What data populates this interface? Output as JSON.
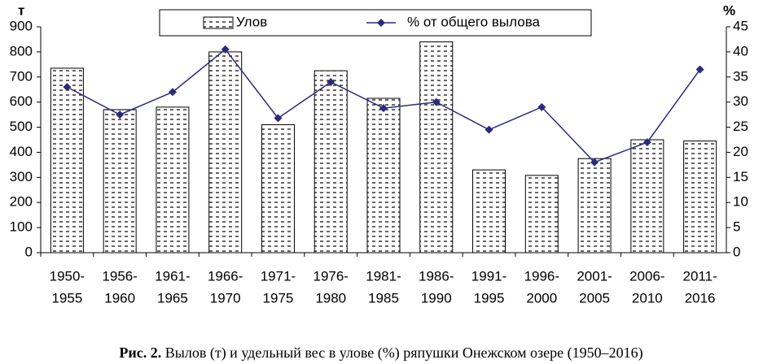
{
  "chart_data": {
    "type": "bar",
    "categories": [
      [
        "1950-",
        "1955"
      ],
      [
        "1956-",
        "1960"
      ],
      [
        "1961-",
        "1965"
      ],
      [
        "1966-",
        "1970"
      ],
      [
        "1971-",
        "1975"
      ],
      [
        "1976-",
        "1980"
      ],
      [
        "1981-",
        "1985"
      ],
      [
        "1986-",
        "1990"
      ],
      [
        "1991-",
        "1995"
      ],
      [
        "1996-",
        "2000"
      ],
      [
        "2001-",
        "2005"
      ],
      [
        "2006-",
        "2010"
      ],
      [
        "2011-",
        "2016"
      ]
    ],
    "series": [
      {
        "name": "Улов",
        "type": "bar",
        "color": "#000000",
        "values": [
          735,
          570,
          580,
          800,
          510,
          725,
          615,
          840,
          330,
          308,
          375,
          450,
          445
        ]
      },
      {
        "name": "% от общего вылова",
        "type": "line",
        "axis": "y2",
        "color": "#2b2b7a",
        "values": [
          33,
          27.5,
          32,
          40.5,
          26.8,
          34,
          28.8,
          30,
          24.5,
          29,
          18,
          22,
          36.5
        ]
      }
    ],
    "y_label": "т",
    "y2_label": "%",
    "ylim": [
      0,
      900
    ],
    "yticks": [
      0,
      100,
      200,
      300,
      400,
      500,
      600,
      700,
      800,
      900
    ],
    "y2lim": [
      0,
      45
    ],
    "y2ticks": [
      0,
      5,
      10,
      15,
      20,
      25,
      30,
      35,
      40,
      45
    ],
    "legend": "top"
  },
  "caption": {
    "label": "Рис. 2.",
    "text": "Вылов (т) и удельный вес в улове (%) ряпушки Онежском озере (1950–2016)"
  }
}
